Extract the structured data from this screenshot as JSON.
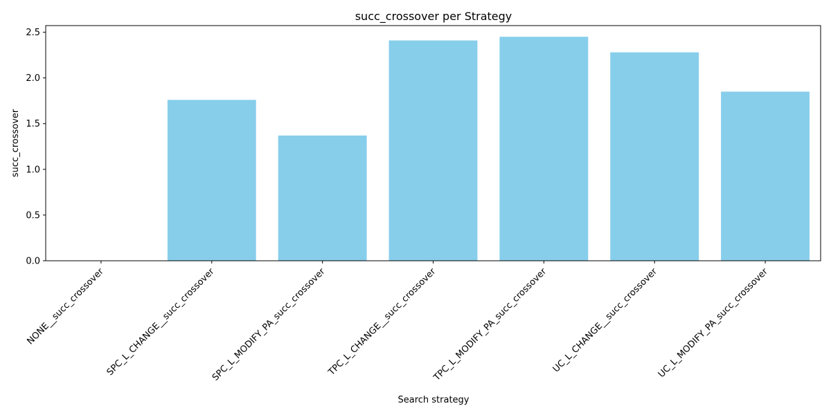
{
  "chart_data": {
    "type": "bar",
    "title": "succ_crossover per Strategy",
    "xlabel": "Search strategy",
    "ylabel": "succ_crossover",
    "categories": [
      "NONE__succ_crossover",
      "SPC_L_CHANGE__succ_crossover",
      "SPC_L_MODIFY_PA_succ_crossover",
      "TPC_L_CHANGE__succ_crossover",
      "TPC_L_MODIFY_PA_succ_crossover",
      "UC_L_CHANGE__succ_crossover",
      "UC_L_MODIFY_PA_succ_crossover"
    ],
    "values": [
      0.0,
      1.76,
      1.37,
      2.41,
      2.45,
      2.28,
      1.85
    ],
    "ylim": [
      0,
      2.5
    ],
    "yticks": [
      "0.0",
      "0.5",
      "1.0",
      "1.5",
      "2.0",
      "2.5"
    ],
    "bar_color": "#87CEEB",
    "grid": false,
    "legend": "none"
  }
}
